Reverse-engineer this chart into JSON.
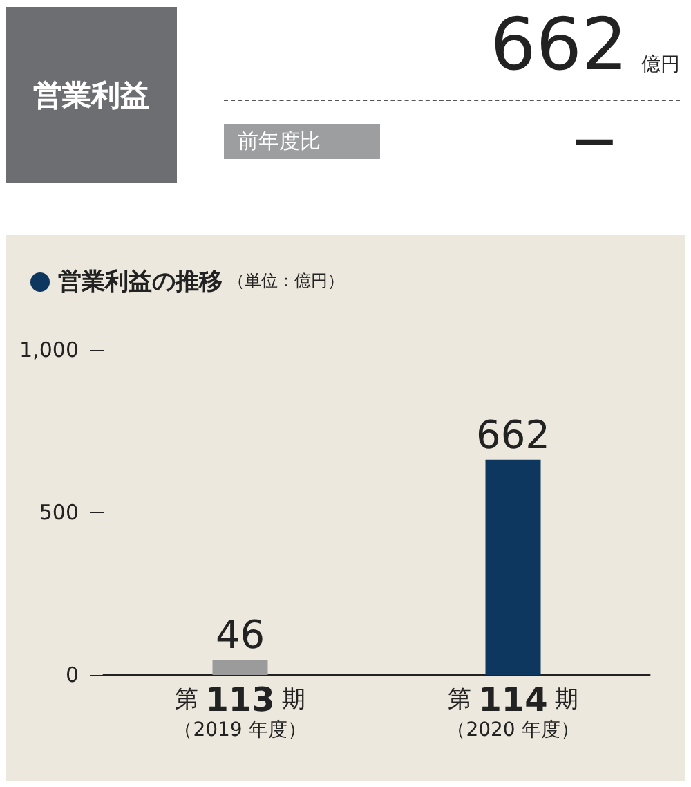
{
  "chart_data": [
    {
      "type": "other",
      "title": "営業利益",
      "annotations": [
        "662",
        "億円",
        "前年度比",
        "—"
      ]
    },
    {
      "type": "bar",
      "title": "営業利益の推移",
      "subtitle": "（単位：億円）",
      "categories": [
        "第 113 期（2019 年度）",
        "第 114 期（2020 年度）"
      ],
      "values": [
        46,
        662
      ],
      "colors": [
        "#9b9b9b",
        "#0d375f"
      ],
      "ylim": [
        0,
        1000
      ],
      "yticks": [
        0,
        {
          "value": 500,
          "label": "500"
        },
        {
          "value": 1000,
          "label": "1,000"
        }
      ],
      "data_labels": true
    }
  ]
}
